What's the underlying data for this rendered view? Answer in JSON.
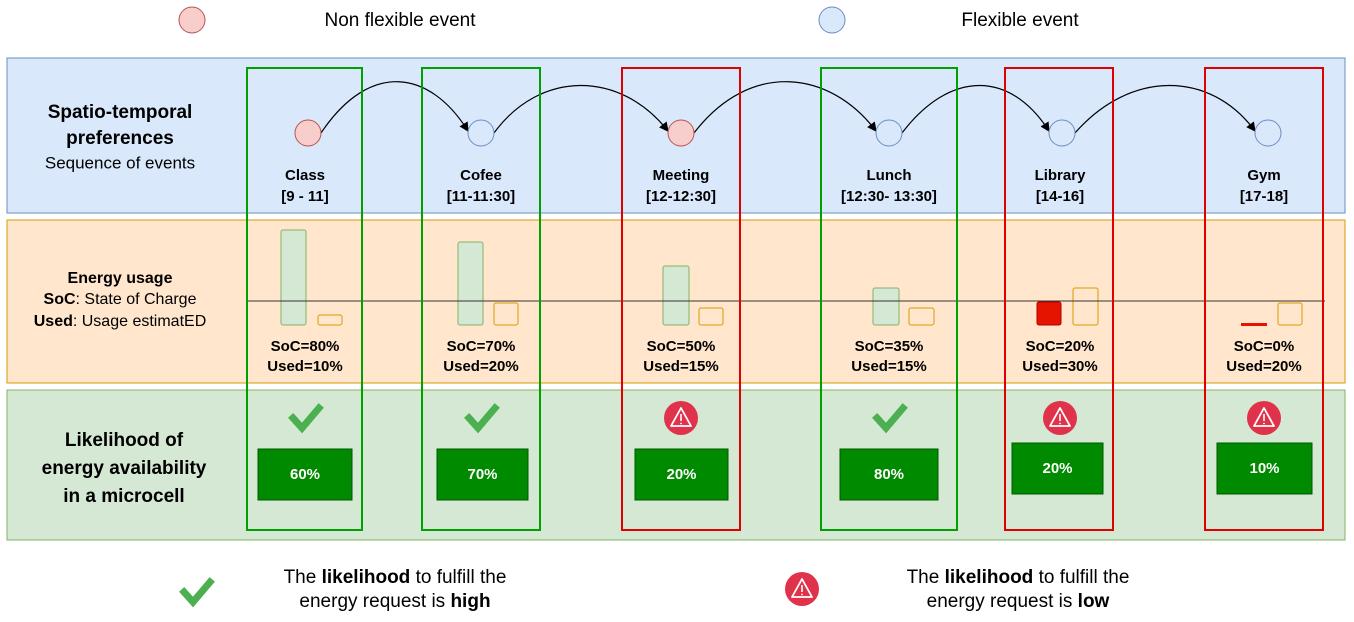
{
  "legend": {
    "non_flexible": "Non flexible event",
    "flexible": "Flexible event"
  },
  "rows": {
    "preferences": {
      "title": [
        "Spatio-temporal",
        "preferences"
      ],
      "subtitle": "Sequence of events"
    },
    "energy": {
      "title": "Energy usage",
      "soc_key": "SoC",
      "soc_desc": ": State of Charge",
      "used_key": "Used",
      "used_desc": ": Usage estimatED"
    },
    "likelihood": {
      "title": [
        "Likelihood of",
        "energy availability",
        "in a microcell"
      ]
    }
  },
  "events": [
    {
      "name": "Class",
      "time": "[9 - 11]",
      "soc": "SoC=80%",
      "used": "Used=10%",
      "likelihood": "60%"
    },
    {
      "name": "Cofee",
      "time": "[11-11:30]",
      "soc": "SoC=70%",
      "used": "Used=20%",
      "likelihood": "70%"
    },
    {
      "name": "Meeting",
      "time": "[12-12:30]",
      "soc": "SoC=50%",
      "used": "Used=15%",
      "likelihood": "20%"
    },
    {
      "name": "Lunch",
      "time": "[12:30- 13:30]",
      "soc": "SoC=35%",
      "used": "Used=15%",
      "likelihood": "80%"
    },
    {
      "name": "Library",
      "time": "[14-16]",
      "soc": "SoC=20%",
      "used": "Used=30%",
      "likelihood": "20%"
    },
    {
      "name": "Gym",
      "time": "[17-18]",
      "soc": "SoC=0%",
      "used": "Used=20%",
      "likelihood": "10%"
    }
  ],
  "notes": {
    "high": {
      "pre": "The ",
      "key": "likelihood",
      "mid": " to fulfill the",
      "line2": "energy request is ",
      "level": "high"
    },
    "low": {
      "pre": "The ",
      "key": "likelihood",
      "mid": " to fulfill the",
      "line2": "energy request is ",
      "level": "low"
    }
  }
}
